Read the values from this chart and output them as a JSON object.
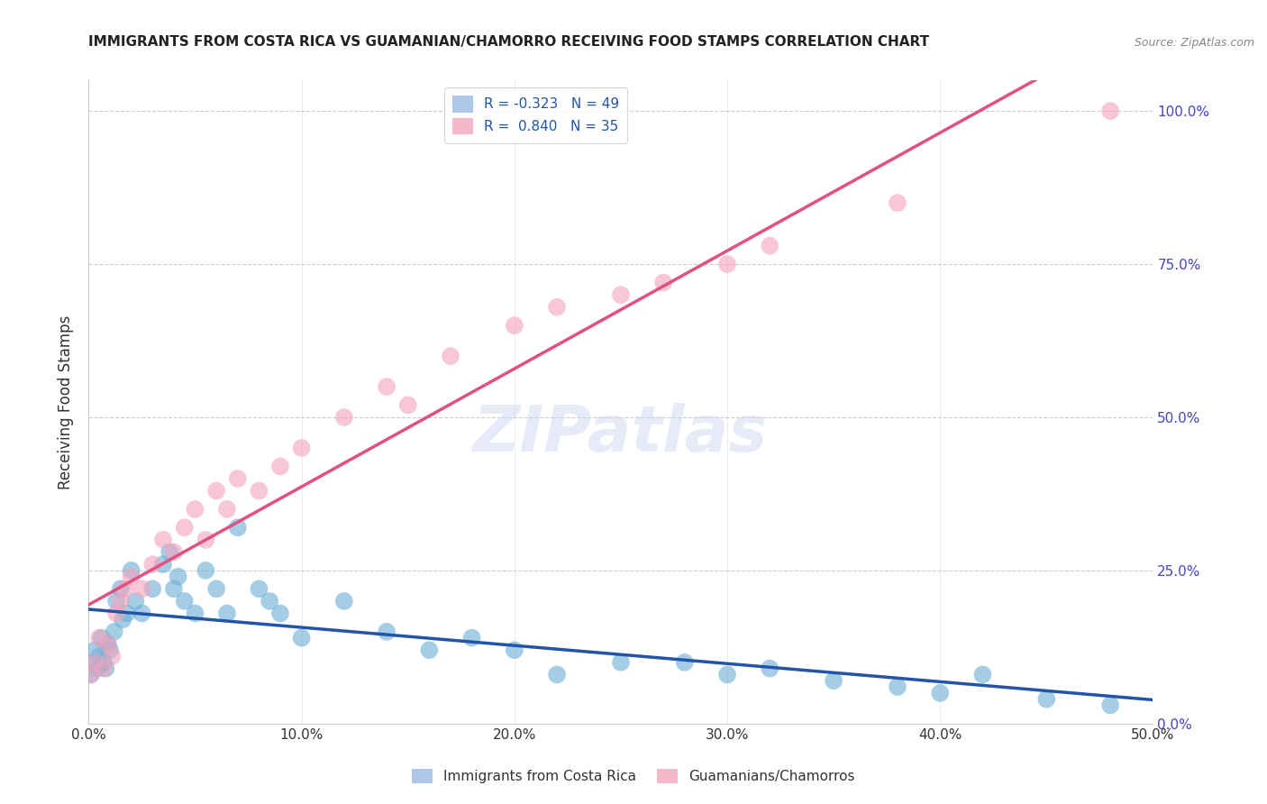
{
  "title": "IMMIGRANTS FROM COSTA RICA VS GUAMANIAN/CHAMORRO RECEIVING FOOD STAMPS CORRELATION CHART",
  "source": "Source: ZipAtlas.com",
  "ylabel": "Receiving Food Stamps",
  "xlabel_ticks": [
    "0.0%",
    "10.0%",
    "20.0%",
    "30.0%",
    "40.0%",
    "50.0%"
  ],
  "ylabel_ticks": [
    "0.0%",
    "25.0%",
    "50.0%",
    "75.0%",
    "100.0%"
  ],
  "xlim": [
    0.0,
    0.5
  ],
  "ylim": [
    0.0,
    1.05
  ],
  "legend_entries": [
    {
      "label": "R = -0.323   N = 49",
      "color": "#aec6e8"
    },
    {
      "label": "R =  0.840   N = 35",
      "color": "#f4b8c8"
    }
  ],
  "legend_bottom": [
    "Immigrants from Costa Rica",
    "Guamanians/Chamorros"
  ],
  "watermark": "ZIPatlas",
  "blue_color": "#6aaed6",
  "pink_color": "#f4a3bb",
  "blue_line_color": "#2255aa",
  "pink_line_color": "#e05080",
  "grid_color": "#cccccc",
  "background_color": "#ffffff",
  "right_axis_color": "#4444cc",
  "costa_rica_x": [
    0.001,
    0.002,
    0.003,
    0.004,
    0.005,
    0.006,
    0.007,
    0.008,
    0.009,
    0.01,
    0.012,
    0.013,
    0.015,
    0.016,
    0.018,
    0.02,
    0.022,
    0.025,
    0.03,
    0.035,
    0.038,
    0.04,
    0.042,
    0.045,
    0.05,
    0.055,
    0.06,
    0.065,
    0.07,
    0.08,
    0.085,
    0.09,
    0.1,
    0.12,
    0.14,
    0.16,
    0.18,
    0.2,
    0.22,
    0.25,
    0.28,
    0.3,
    0.32,
    0.35,
    0.38,
    0.4,
    0.42,
    0.45,
    0.48
  ],
  "costa_rica_y": [
    0.08,
    0.1,
    0.12,
    0.09,
    0.11,
    0.14,
    0.1,
    0.09,
    0.13,
    0.12,
    0.15,
    0.2,
    0.22,
    0.17,
    0.18,
    0.25,
    0.2,
    0.18,
    0.22,
    0.26,
    0.28,
    0.22,
    0.24,
    0.2,
    0.18,
    0.25,
    0.22,
    0.18,
    0.32,
    0.22,
    0.2,
    0.18,
    0.14,
    0.2,
    0.15,
    0.12,
    0.14,
    0.12,
    0.08,
    0.1,
    0.1,
    0.08,
    0.09,
    0.07,
    0.06,
    0.05,
    0.08,
    0.04,
    0.03
  ],
  "guamanian_x": [
    0.001,
    0.003,
    0.005,
    0.007,
    0.009,
    0.011,
    0.013,
    0.015,
    0.017,
    0.02,
    0.025,
    0.03,
    0.035,
    0.04,
    0.045,
    0.05,
    0.055,
    0.06,
    0.065,
    0.07,
    0.08,
    0.09,
    0.1,
    0.12,
    0.14,
    0.15,
    0.17,
    0.2,
    0.22,
    0.25,
    0.27,
    0.3,
    0.32,
    0.38,
    0.48
  ],
  "guamanian_y": [
    0.08,
    0.1,
    0.14,
    0.09,
    0.13,
    0.11,
    0.18,
    0.2,
    0.22,
    0.24,
    0.22,
    0.26,
    0.3,
    0.28,
    0.32,
    0.35,
    0.3,
    0.38,
    0.35,
    0.4,
    0.38,
    0.42,
    0.45,
    0.5,
    0.55,
    0.52,
    0.6,
    0.65,
    0.68,
    0.7,
    0.72,
    0.75,
    0.78,
    0.85,
    1.0
  ]
}
